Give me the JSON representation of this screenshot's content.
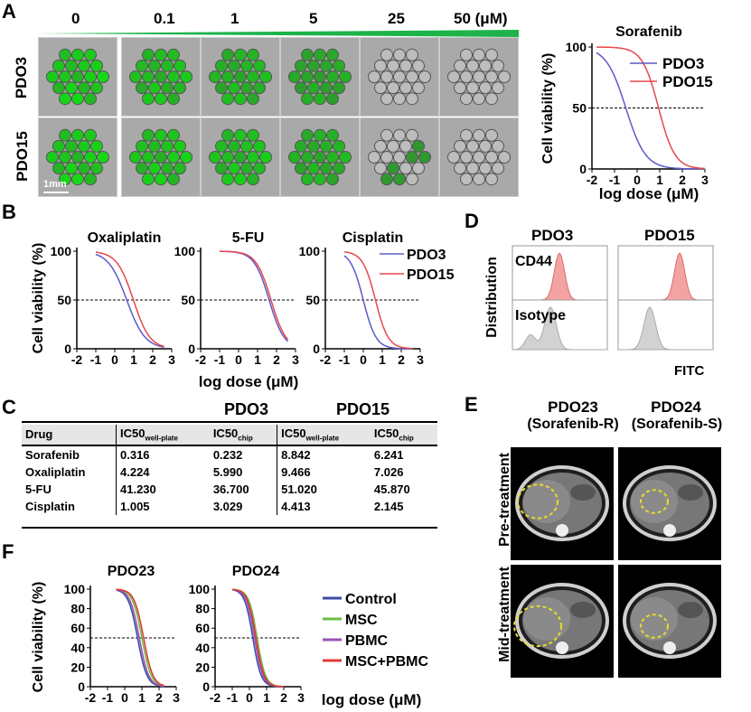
{
  "panels": {
    "A": "A",
    "B": "B",
    "C": "C",
    "D": "D",
    "E": "E",
    "F": "F"
  },
  "panelA": {
    "doses": [
      "0",
      "0.1",
      "1",
      "5",
      "25",
      "50 (μM)"
    ],
    "rows": [
      "PDO3",
      "PDO15"
    ],
    "scalebar": "1mm",
    "accent": "#1db34a"
  },
  "chart_data": [
    {
      "type": "line",
      "title": "Sorafenib",
      "xlabel": "log dose (μM)",
      "ylabel": "Cell viability (%)",
      "xlim": [
        -2,
        3
      ],
      "ylim": [
        0,
        100
      ],
      "xticks": [
        "-2",
        "-1",
        "0",
        "1",
        "2",
        "3"
      ],
      "yticks": [
        "0",
        "50",
        "100"
      ],
      "series": [
        {
          "name": "PDO3",
          "color": "#5b5bc8",
          "ic50_log": -0.5,
          "hill": 1.0
        },
        {
          "name": "PDO15",
          "color": "#e8474b",
          "ic50_log": 0.95,
          "hill": 1.2
        }
      ],
      "reference_line": 50
    },
    {
      "type": "line",
      "title": "Oxaliplatin",
      "xlabel": "",
      "ylabel": "Cell viability (%)",
      "xlim": [
        -2,
        3
      ],
      "ylim": [
        0,
        100
      ],
      "xticks": [
        "-2",
        "-1",
        "0",
        "1",
        "2",
        "3"
      ],
      "yticks": [
        "0",
        "50",
        "100"
      ],
      "series": [
        {
          "name": "PDO3",
          "color": "#5b5bc8",
          "ic50_log": 0.63,
          "hill": 0.9
        },
        {
          "name": "PDO15",
          "color": "#e8474b",
          "ic50_log": 0.98,
          "hill": 1.0
        }
      ],
      "reference_line": 50
    },
    {
      "type": "line",
      "title": "5-FU",
      "xlabel": "log dose (μM)",
      "ylabel": "",
      "xlim": [
        -2,
        3
      ],
      "ylim": [
        0,
        100
      ],
      "xticks": [
        "-2",
        "-1",
        "0",
        "1",
        "2",
        "3"
      ],
      "yticks": [
        "0",
        "50",
        "100"
      ],
      "series": [
        {
          "name": "PDO3",
          "color": "#5b5bc8",
          "ic50_log": 1.61,
          "hill": 1.1
        },
        {
          "name": "PDO15",
          "color": "#e8474b",
          "ic50_log": 1.71,
          "hill": 1.1
        }
      ],
      "reference_line": 50
    },
    {
      "type": "line",
      "title": "Cisplatin",
      "xlabel": "",
      "ylabel": "",
      "xlim": [
        -2,
        3
      ],
      "ylim": [
        0,
        100
      ],
      "xticks": [
        "-2",
        "-1",
        "0",
        "1",
        "2",
        "3"
      ],
      "yticks": [
        "0",
        "50",
        "100"
      ],
      "series": [
        {
          "name": "PDO3",
          "color": "#5b5bc8",
          "ic50_log": 0.0,
          "hill": 1.3
        },
        {
          "name": "PDO15",
          "color": "#e8474b",
          "ic50_log": 0.64,
          "hill": 1.3
        }
      ],
      "reference_line": 50
    },
    {
      "type": "line",
      "title": "PDO23",
      "xlabel": "",
      "ylabel": "Cell viability (%)",
      "xlim": [
        -2,
        3
      ],
      "ylim": [
        0,
        100
      ],
      "xticks": [
        "-2",
        "-1",
        "0",
        "1",
        "2",
        "3"
      ],
      "yticks": [
        "0",
        "20",
        "40",
        "60",
        "80",
        "100"
      ],
      "series": [
        {
          "name": "Control",
          "color": "#3b4ea8",
          "ic50_log": 0.75,
          "hill": 1.6
        },
        {
          "name": "MSC",
          "color": "#6dbf45",
          "ic50_log": 1.0,
          "hill": 1.6
        },
        {
          "name": "PBMC",
          "color": "#9a52b0",
          "ic50_log": 0.85,
          "hill": 1.6
        },
        {
          "name": "MSC+PBMC",
          "color": "#e03a3a",
          "ic50_log": 1.1,
          "hill": 1.6
        }
      ],
      "reference_line": 50
    },
    {
      "type": "line",
      "title": "PDO24",
      "xlabel": "log dose (μM)",
      "ylabel": "",
      "xlim": [
        -2,
        3
      ],
      "ylim": [
        0,
        100
      ],
      "xticks": [
        "-2",
        "-1",
        "0",
        "1",
        "2",
        "3"
      ],
      "yticks": [
        "0",
        "20",
        "40",
        "60",
        "80",
        "100"
      ],
      "series": [
        {
          "name": "Control",
          "color": "#3b4ea8",
          "ic50_log": 0.2,
          "hill": 1.8
        },
        {
          "name": "MSC",
          "color": "#6dbf45",
          "ic50_log": 0.45,
          "hill": 1.8
        },
        {
          "name": "PBMC",
          "color": "#9a52b0",
          "ic50_log": 0.3,
          "hill": 1.8
        },
        {
          "name": "MSC+PBMC",
          "color": "#e03a3a",
          "ic50_log": 0.38,
          "hill": 1.8
        }
      ],
      "reference_line": 50
    }
  ],
  "panelB": {
    "ylabel": "Cell viability (%)",
    "xlabel": "log dose (μM)"
  },
  "panelC": {
    "group1": "PDO3",
    "group2": "PDO15",
    "headers": [
      "Drug",
      "IC50",
      "well-plate",
      "IC50",
      "chip",
      "IC50",
      "well-plate",
      "IC50",
      "chip"
    ],
    "rows": [
      [
        "Sorafenib",
        "0.316",
        "0.232",
        "8.842",
        "6.241"
      ],
      [
        "Oxaliplatin",
        "4.224",
        "5.990",
        "9.466",
        "7.026"
      ],
      [
        "5-FU",
        "41.230",
        "36.700",
        "51.020",
        "45.870"
      ],
      [
        "Cisplatin",
        "1.005",
        "3.029",
        "4.413",
        "2.145"
      ]
    ]
  },
  "panelD": {
    "col1": "PDO3",
    "col2": "PDO15",
    "marker": "CD44",
    "control": "Isotype",
    "ylabel": "Distribution",
    "xlabel": "FITC"
  },
  "panelE": {
    "col1": "PDO23",
    "col1b": "(Sorafenib-R)",
    "col2": "PDO24",
    "col2b": "(Sorafenib-S)",
    "row1": "Pre-treatment",
    "row2": "Mid-treatment"
  },
  "panelF": {
    "ylabel": "Cell viability (%)",
    "xlabel": "log dose (μM)"
  }
}
